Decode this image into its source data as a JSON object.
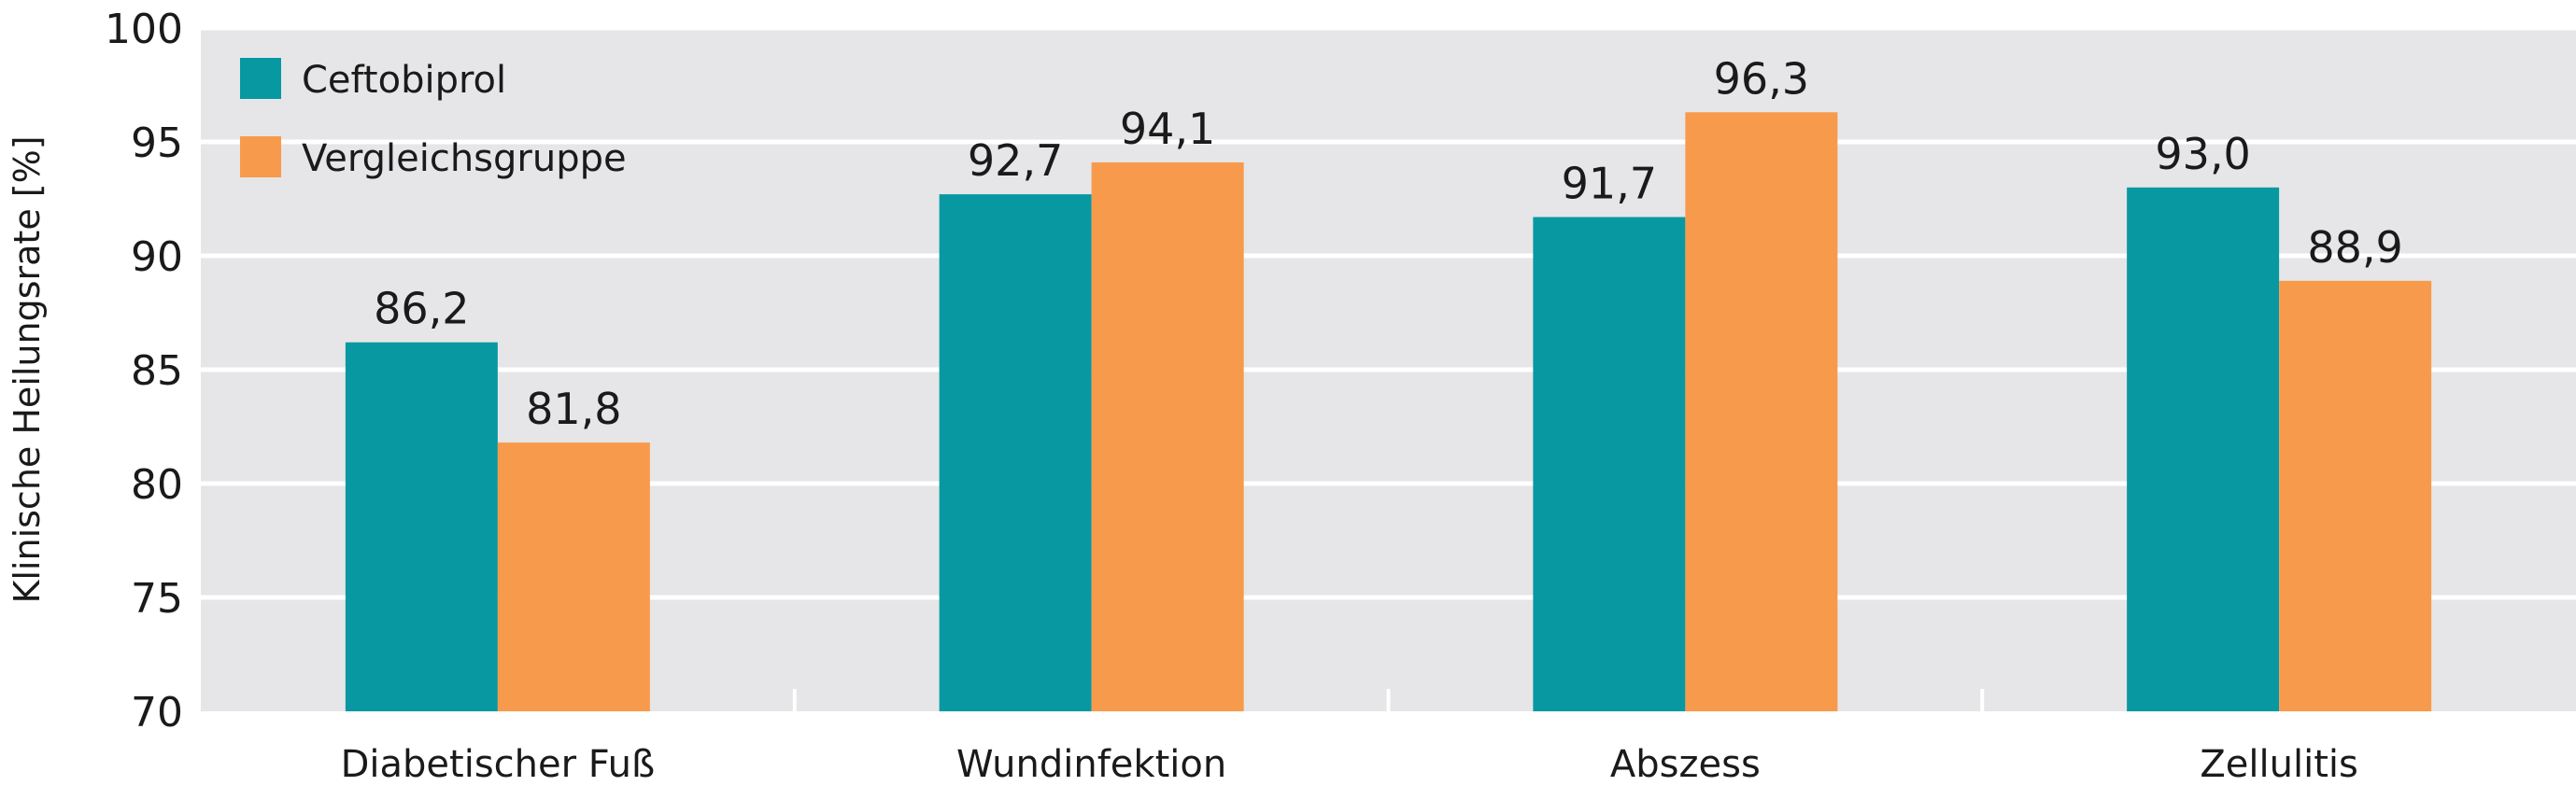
{
  "chart_data": {
    "type": "bar",
    "ylabel": "Klinische Heilungsrate [%]",
    "ylim": [
      70,
      100
    ],
    "yticks": [
      70,
      75,
      80,
      85,
      90,
      95,
      100
    ],
    "ytick_labels": [
      "70",
      "75",
      "80",
      "85",
      "90",
      "95",
      "100"
    ],
    "categories": [
      "Diabetischer Fuß",
      "Wundinfektion",
      "Abszess",
      "Zellulitis"
    ],
    "series": [
      {
        "name": "Ceftobiprol",
        "color": "#0898a2",
        "values": [
          86.2,
          92.7,
          91.7,
          93.0
        ],
        "labels": [
          "86,2",
          "92,7",
          "91,7",
          "93,0"
        ]
      },
      {
        "name": "Vergleichsgruppe",
        "color": "#f79a4b",
        "values": [
          81.8,
          94.1,
          96.3,
          88.9
        ],
        "labels": [
          "81,8",
          "94,1",
          "96,3",
          "88,9"
        ]
      }
    ],
    "grid": true,
    "background_color": "#e6e6e8",
    "legend_position": "top-left"
  }
}
